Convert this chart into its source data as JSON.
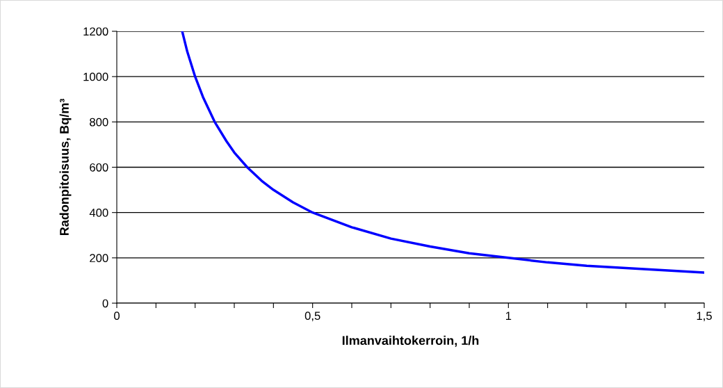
{
  "chart_data": {
    "type": "line",
    "xlabel": "Ilmanvaihtokerroin, 1/h",
    "ylabel": "Radonpitoisuus, Bq/m³",
    "x": [
      0.167,
      0.18,
      0.2,
      0.22,
      0.25,
      0.28,
      0.3,
      0.333,
      0.37,
      0.4,
      0.45,
      0.5,
      0.6,
      0.7,
      0.8,
      0.9,
      1.0,
      1.1,
      1.2,
      1.3,
      1.4,
      1.5
    ],
    "series": [
      {
        "color": "#0000ff",
        "values": [
          1200,
          1110,
          1000,
          910,
          800,
          715,
          665,
          600,
          540,
          500,
          445,
          400,
          335,
          285,
          250,
          220,
          200,
          180,
          165,
          155,
          145,
          135
        ]
      }
    ],
    "xlim": [
      0,
      1.5
    ],
    "ylim": [
      0,
      1200
    ],
    "xticks": [
      0,
      {
        "value": 0.1,
        "label": null
      },
      {
        "value": 0.2,
        "label": null
      },
      {
        "value": 0.3,
        "label": null
      },
      {
        "value": 0.4,
        "label": null
      },
      {
        "value": 0.5,
        "label": "0,5"
      },
      {
        "value": 0.6,
        "label": null
      },
      {
        "value": 0.7,
        "label": null
      },
      {
        "value": 0.8,
        "label": null
      },
      {
        "value": 0.9,
        "label": null
      },
      1,
      {
        "value": 1.1,
        "label": null
      },
      {
        "value": 1.2,
        "label": null
      },
      {
        "value": 1.3,
        "label": null
      },
      {
        "value": 1.4,
        "label": null
      },
      {
        "value": 1.5,
        "label": "1,5"
      }
    ],
    "yticks": [
      0,
      200,
      400,
      600,
      800,
      1000,
      1200
    ],
    "grid": "y",
    "legend": false,
    "marker": "none",
    "line_style": "solid"
  }
}
